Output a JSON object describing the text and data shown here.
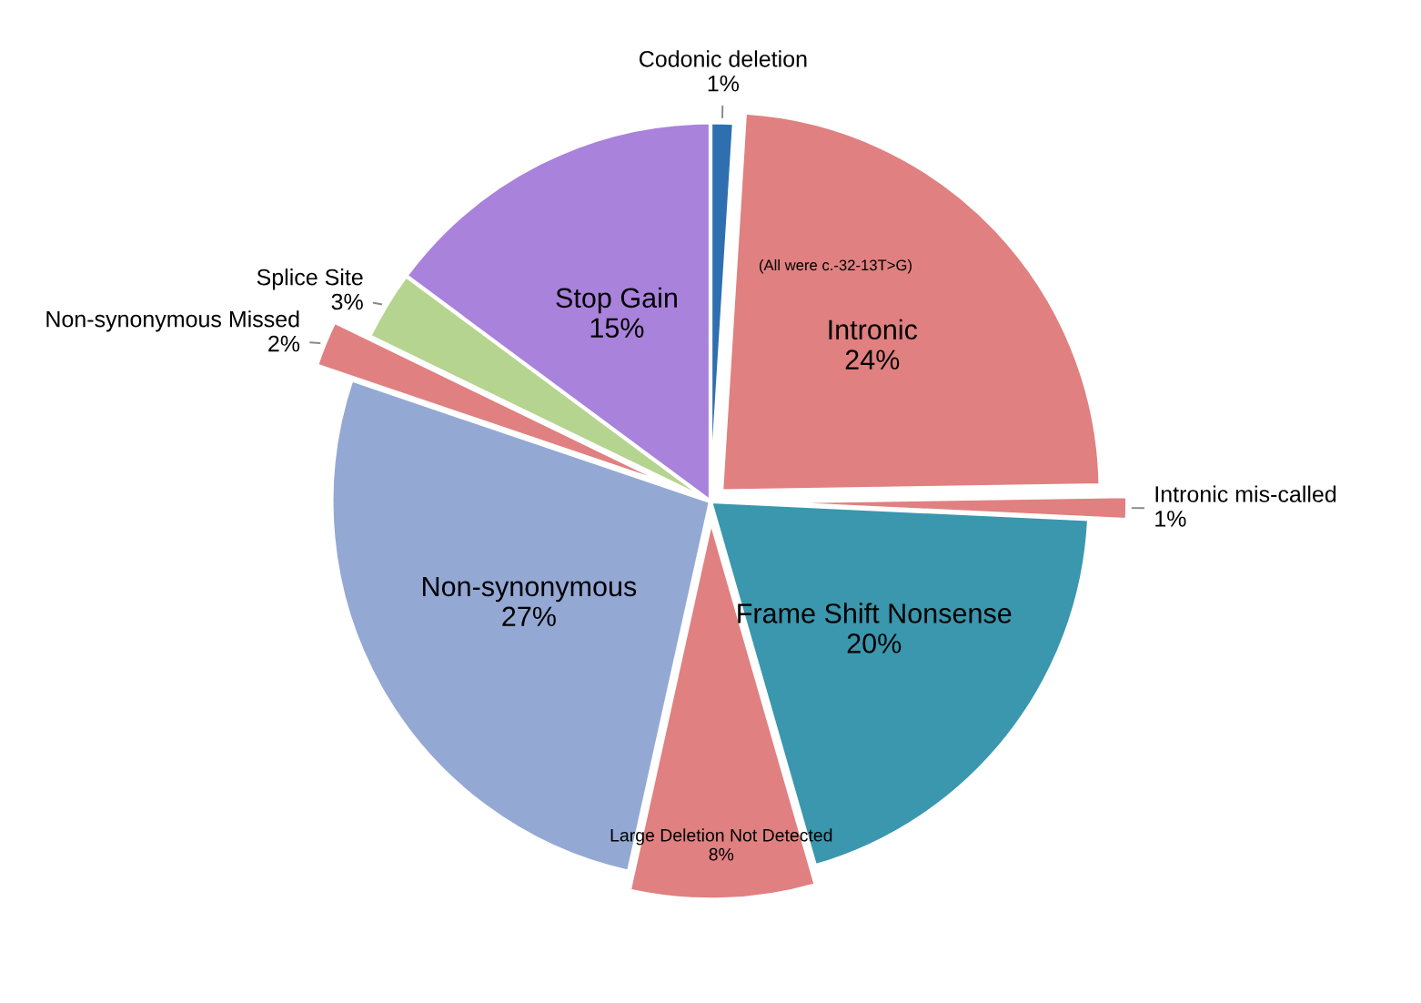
{
  "chart_data": {
    "type": "pie",
    "categories": [
      "Codonic deletion",
      "Intronic",
      "Intronic mis-called",
      "Frame Shift Nonsense",
      "Large Deletion Not Detected",
      "Non-synonymous",
      "Non-synonymous Missed",
      "Splice Site",
      "Stop Gain"
    ],
    "values": [
      1,
      24,
      1,
      20,
      8,
      27,
      2,
      3,
      15
    ],
    "value_labels": [
      "1%",
      "24%",
      "1%",
      "20%",
      "8%",
      "27%",
      "2%",
      "3%",
      "15%"
    ],
    "colors": [
      "#2f6fb0",
      "#e08080",
      "#e08080",
      "#3a97ad",
      "#e08080",
      "#94a8d4",
      "#e08080",
      "#b5d48f",
      "#a982dc"
    ],
    "annotations": [
      "(All were c.-32-13T>G)"
    ],
    "legend": false
  }
}
